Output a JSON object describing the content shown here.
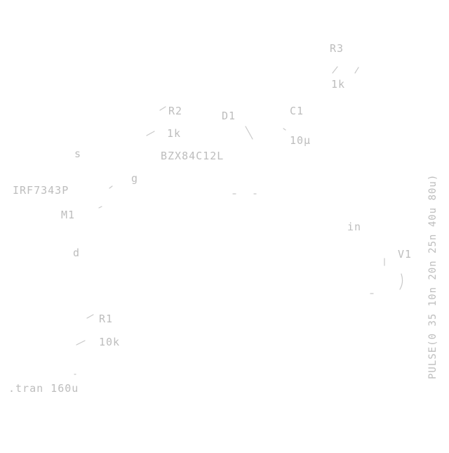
{
  "schematic": {
    "components": {
      "R3": {
        "ref": "R3",
        "value": "1k"
      },
      "R2": {
        "ref": "R2",
        "value": "1k"
      },
      "D1": {
        "ref": "D1",
        "value": "BZX84C12L"
      },
      "C1": {
        "ref": "C1",
        "value": "10µ"
      },
      "M1": {
        "ref": "M1",
        "value": "IRF7343P",
        "pin_s": "s",
        "pin_g": "g",
        "pin_d": "d"
      },
      "R1": {
        "ref": "R1",
        "value": "10k"
      },
      "V1": {
        "ref": "V1",
        "value": "PULSE(0 35 10n 20n 25n 40u 80u)"
      }
    },
    "nets": {
      "in": "in"
    },
    "directive": ".tran 160u"
  },
  "colors": {
    "stroke": "#c8c8c8",
    "text": "#bdbdbd",
    "background": "#ffffff"
  }
}
